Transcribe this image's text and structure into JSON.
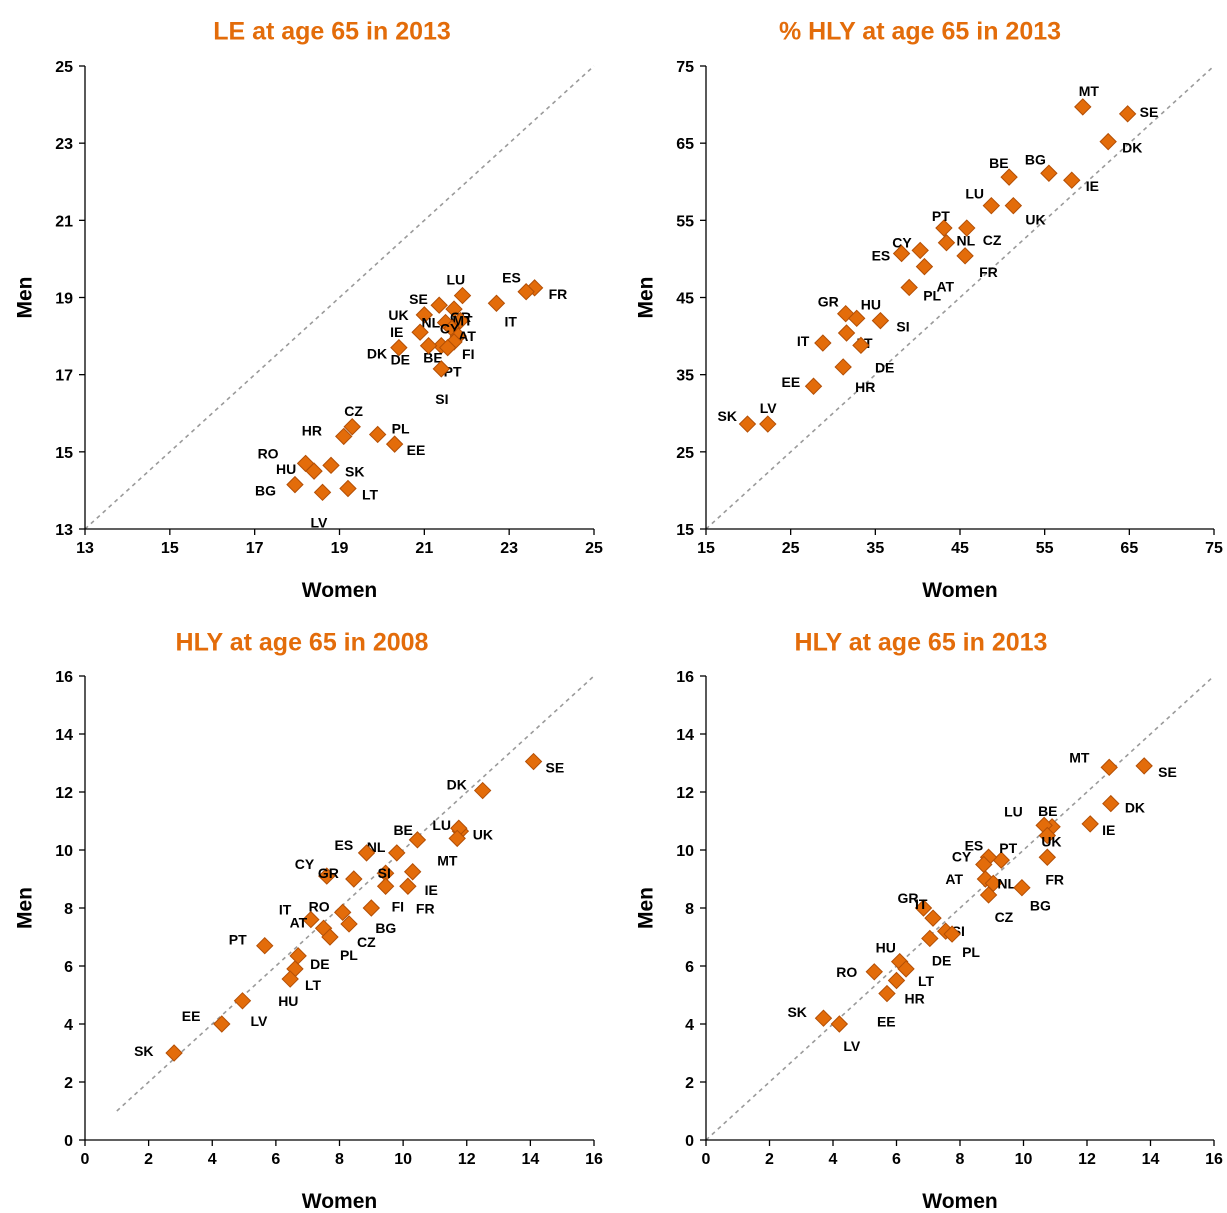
{
  "style": {
    "title_color": "#E36C0A",
    "marker_color": "#E36C0A",
    "marker_stroke": "#B34F06",
    "diagonal_color": "#9a9a9a"
  },
  "chart_data": [
    {
      "type": "scatter",
      "title": "LE at age 65 in 2013",
      "xlabel": "Women",
      "ylabel": "Men",
      "xlim": [
        13,
        25
      ],
      "ylim": [
        13,
        25
      ],
      "xticks": [
        13,
        15,
        17,
        19,
        21,
        23,
        25
      ],
      "yticks": [
        13,
        15,
        17,
        19,
        21,
        23,
        25
      ],
      "reference_line": "y = x (dashed)",
      "points": [
        {
          "label": "FR",
          "x": 23.6,
          "y": 19.25
        },
        {
          "label": "ES",
          "x": 23.4,
          "y": 19.15
        },
        {
          "label": "IT",
          "x": 22.7,
          "y": 18.85
        },
        {
          "label": "LU",
          "x": 21.9,
          "y": 19.05
        },
        {
          "label": "GR",
          "x": 21.7,
          "y": 18.7
        },
        {
          "label": "SE",
          "x": 21.35,
          "y": 18.8
        },
        {
          "label": "UK",
          "x": 21.0,
          "y": 18.55
        },
        {
          "label": "NL",
          "x": 21.5,
          "y": 18.35
        },
        {
          "label": "MT",
          "x": 21.85,
          "y": 18.4
        },
        {
          "label": "CY",
          "x": 21.65,
          "y": 18.2
        },
        {
          "label": "AT",
          "x": 21.8,
          "y": 18.0
        },
        {
          "label": "IE",
          "x": 20.9,
          "y": 18.1
        },
        {
          "label": "FI",
          "x": 21.7,
          "y": 17.85
        },
        {
          "label": "BE",
          "x": 21.4,
          "y": 17.75
        },
        {
          "label": "PT",
          "x": 21.55,
          "y": 17.7
        },
        {
          "label": "DE",
          "x": 21.1,
          "y": 17.75
        },
        {
          "label": "DK",
          "x": 20.4,
          "y": 17.7
        },
        {
          "label": "SI",
          "x": 21.4,
          "y": 17.15
        },
        {
          "label": "CZ",
          "x": 19.3,
          "y": 15.65
        },
        {
          "label": "HR",
          "x": 19.1,
          "y": 15.4
        },
        {
          "label": "PL",
          "x": 19.9,
          "y": 15.45
        },
        {
          "label": "EE",
          "x": 20.3,
          "y": 15.2
        },
        {
          "label": "RO",
          "x": 18.2,
          "y": 14.7
        },
        {
          "label": "HU",
          "x": 18.4,
          "y": 14.5
        },
        {
          "label": "SK",
          "x": 18.8,
          "y": 14.65
        },
        {
          "label": "BG",
          "x": 17.95,
          "y": 14.15
        },
        {
          "label": "LT",
          "x": 19.2,
          "y": 14.05
        },
        {
          "label": "LV",
          "x": 18.6,
          "y": 13.95
        }
      ]
    },
    {
      "type": "scatter",
      "title": "% HLY at age 65 in 2013",
      "xlabel": "Women",
      "ylabel": "Men",
      "xlim": [
        15,
        75
      ],
      "ylim": [
        15,
        75
      ],
      "xticks": [
        15,
        25,
        35,
        45,
        55,
        65,
        75
      ],
      "yticks": [
        15,
        25,
        35,
        45,
        55,
        65,
        75
      ],
      "reference_line": "y = x (dashed)",
      "points": [
        {
          "label": "MT",
          "x": 59.5,
          "y": 69.7
        },
        {
          "label": "SE",
          "x": 64.8,
          "y": 68.8
        },
        {
          "label": "DK",
          "x": 62.5,
          "y": 65.2
        },
        {
          "label": "BG",
          "x": 55.5,
          "y": 61.1
        },
        {
          "label": "IE",
          "x": 58.2,
          "y": 60.2
        },
        {
          "label": "BE",
          "x": 50.8,
          "y": 60.6
        },
        {
          "label": "LU",
          "x": 48.7,
          "y": 56.9
        },
        {
          "label": "UK",
          "x": 51.3,
          "y": 56.9
        },
        {
          "label": "PT",
          "x": 43.1,
          "y": 54.0
        },
        {
          "label": "CZ",
          "x": 45.8,
          "y": 54.0
        },
        {
          "label": "NL",
          "x": 43.4,
          "y": 52.1
        },
        {
          "label": "CY",
          "x": 40.3,
          "y": 51.1
        },
        {
          "label": "ES",
          "x": 38.1,
          "y": 50.7
        },
        {
          "label": "FR",
          "x": 45.6,
          "y": 50.4
        },
        {
          "label": "AT",
          "x": 40.8,
          "y": 49.0
        },
        {
          "label": "PL",
          "x": 39.0,
          "y": 46.3
        },
        {
          "label": "GR",
          "x": 31.5,
          "y": 42.9
        },
        {
          "label": "HU",
          "x": 32.8,
          "y": 42.3
        },
        {
          "label": "SI",
          "x": 35.6,
          "y": 42.0
        },
        {
          "label": "LT",
          "x": 31.6,
          "y": 40.4
        },
        {
          "label": "IT",
          "x": 28.8,
          "y": 39.1
        },
        {
          "label": "DE",
          "x": 33.3,
          "y": 38.8
        },
        {
          "label": "HR",
          "x": 31.2,
          "y": 36.0
        },
        {
          "label": "EE",
          "x": 27.7,
          "y": 33.5
        },
        {
          "label": "SK",
          "x": 19.9,
          "y": 28.6
        },
        {
          "label": "LV",
          "x": 22.3,
          "y": 28.6
        }
      ]
    },
    {
      "type": "scatter",
      "title": "HLY at age 65 in 2008",
      "xlabel": "Women",
      "ylabel": "Men",
      "xlim": [
        0,
        16
      ],
      "ylim": [
        0,
        16
      ],
      "xticks": [
        0,
        2,
        4,
        6,
        8,
        10,
        12,
        14,
        16
      ],
      "yticks": [
        0,
        2,
        4,
        6,
        8,
        10,
        12,
        14,
        16
      ],
      "reference_line": "y = x (dashed, from 1)",
      "points": [
        {
          "label": "SE",
          "x": 14.1,
          "y": 13.05
        },
        {
          "label": "DK",
          "x": 12.5,
          "y": 12.05
        },
        {
          "label": "LU",
          "x": 11.8,
          "y": 10.65
        },
        {
          "label": "UK",
          "x": 11.75,
          "y": 10.75
        },
        {
          "label": "MT",
          "x": 11.7,
          "y": 10.4
        },
        {
          "label": "BE",
          "x": 10.45,
          "y": 10.35
        },
        {
          "label": "NL",
          "x": 9.8,
          "y": 9.9
        },
        {
          "label": "ES",
          "x": 8.85,
          "y": 9.9
        },
        {
          "label": "IE",
          "x": 10.3,
          "y": 9.25
        },
        {
          "label": "SI",
          "x": 9.45,
          "y": 9.2
        },
        {
          "label": "CY",
          "x": 7.6,
          "y": 9.1
        },
        {
          "label": "GR",
          "x": 8.45,
          "y": 9.0
        },
        {
          "label": "FI",
          "x": 9.45,
          "y": 8.75
        },
        {
          "label": "FR",
          "x": 10.15,
          "y": 8.75
        },
        {
          "label": "RO",
          "x": 8.1,
          "y": 7.85
        },
        {
          "label": "BG",
          "x": 9.0,
          "y": 8.0
        },
        {
          "label": "IT",
          "x": 7.1,
          "y": 7.6
        },
        {
          "label": "CZ",
          "x": 8.3,
          "y": 7.45
        },
        {
          "label": "AT",
          "x": 7.5,
          "y": 7.3
        },
        {
          "label": "PL",
          "x": 7.7,
          "y": 7.0
        },
        {
          "label": "PT",
          "x": 5.65,
          "y": 6.7
        },
        {
          "label": "DE",
          "x": 6.7,
          "y": 6.35
        },
        {
          "label": "LT",
          "x": 6.6,
          "y": 5.9
        },
        {
          "label": "HU",
          "x": 6.45,
          "y": 5.55
        },
        {
          "label": "LV",
          "x": 4.95,
          "y": 4.8
        },
        {
          "label": "EE",
          "x": 4.3,
          "y": 4.0
        },
        {
          "label": "SK",
          "x": 2.8,
          "y": 3.0
        }
      ]
    },
    {
      "type": "scatter",
      "title": "HLY at age 65 in 2013",
      "xlabel": "Women",
      "ylabel": "Men",
      "xlim": [
        0,
        16
      ],
      "ylim": [
        0,
        16
      ],
      "xticks": [
        0,
        2,
        4,
        6,
        8,
        10,
        12,
        14,
        16
      ],
      "yticks": [
        0,
        2,
        4,
        6,
        8,
        10,
        12,
        14,
        16
      ],
      "reference_line": "y = x (dashed)",
      "points": [
        {
          "label": "SE",
          "x": 13.8,
          "y": 12.9
        },
        {
          "label": "MT",
          "x": 12.7,
          "y": 12.85
        },
        {
          "label": "DK",
          "x": 12.75,
          "y": 11.6
        },
        {
          "label": "IE",
          "x": 12.1,
          "y": 10.9
        },
        {
          "label": "BE",
          "x": 10.9,
          "y": 10.8
        },
        {
          "label": "LU",
          "x": 10.65,
          "y": 10.85
        },
        {
          "label": "UK",
          "x": 10.75,
          "y": 10.5
        },
        {
          "label": "FR",
          "x": 10.75,
          "y": 9.75
        },
        {
          "label": "PT",
          "x": 9.3,
          "y": 9.65
        },
        {
          "label": "ES",
          "x": 8.9,
          "y": 9.75
        },
        {
          "label": "CY",
          "x": 8.75,
          "y": 9.5
        },
        {
          "label": "AT",
          "x": 8.8,
          "y": 9.0
        },
        {
          "label": "NL",
          "x": 9.05,
          "y": 8.85
        },
        {
          "label": "BG",
          "x": 9.95,
          "y": 8.7
        },
        {
          "label": "CZ",
          "x": 8.9,
          "y": 8.45
        },
        {
          "label": "GR",
          "x": 6.85,
          "y": 8.0
        },
        {
          "label": "IT",
          "x": 7.15,
          "y": 7.65
        },
        {
          "label": "SI",
          "x": 7.55,
          "y": 7.2
        },
        {
          "label": "PL",
          "x": 7.75,
          "y": 7.1
        },
        {
          "label": "DE",
          "x": 7.05,
          "y": 6.95
        },
        {
          "label": "HU",
          "x": 6.1,
          "y": 6.15
        },
        {
          "label": "LT",
          "x": 6.3,
          "y": 5.9
        },
        {
          "label": "RO",
          "x": 5.3,
          "y": 5.8
        },
        {
          "label": "HR",
          "x": 6.0,
          "y": 5.5
        },
        {
          "label": "EE",
          "x": 5.7,
          "y": 5.05
        },
        {
          "label": "SK",
          "x": 3.7,
          "y": 4.2
        },
        {
          "label": "LV",
          "x": 4.2,
          "y": 4.0
        }
      ]
    }
  ]
}
